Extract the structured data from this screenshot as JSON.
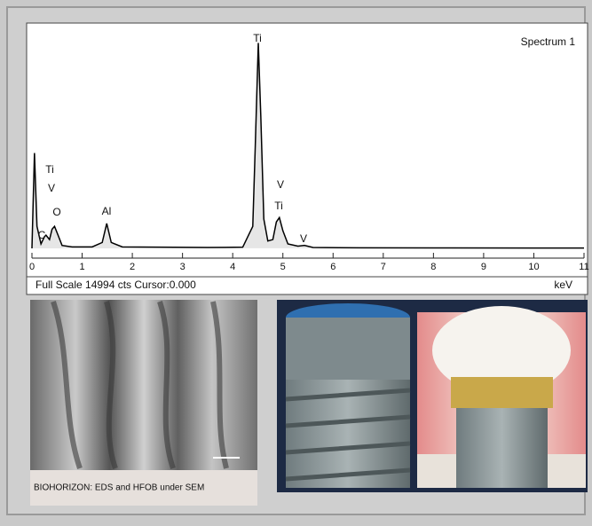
{
  "chart_data": {
    "type": "line",
    "series": [
      {
        "name": "Spectrum 1",
        "color": "#000000",
        "x": [
          0,
          0.05,
          0.1,
          0.18,
          0.25,
          0.28,
          0.35,
          0.4,
          0.45,
          0.52,
          0.6,
          0.8,
          1.2,
          1.4,
          1.49,
          1.58,
          1.8,
          2.5,
          3.5,
          4.2,
          4.4,
          4.45,
          4.51,
          4.56,
          4.62,
          4.7,
          4.8,
          4.87,
          4.93,
          5.0,
          5.1,
          5.3,
          5.43,
          5.6,
          6.5,
          8,
          10,
          11
        ],
        "values": [
          0,
          6500,
          1500,
          300,
          800,
          900,
          600,
          1300,
          1500,
          900,
          200,
          100,
          100,
          400,
          1700,
          400,
          100,
          80,
          60,
          80,
          1500,
          7000,
          14000,
          9000,
          2000,
          500,
          600,
          1800,
          2100,
          1200,
          300,
          150,
          200,
          60,
          40,
          30,
          20,
          20
        ]
      }
    ],
    "xlim": [
      0,
      11
    ],
    "xticks": [
      0,
      1,
      2,
      3,
      4,
      5,
      6,
      7,
      8,
      9,
      10,
      11
    ],
    "ylim": [
      0,
      14994
    ],
    "x_label": "keV",
    "footer": "Full Scale 14994 cts Cursor:0.000",
    "annotations": [
      "Ti",
      "V",
      "O",
      "C",
      "Al",
      "Ti",
      "V",
      "Ti",
      "V"
    ]
  },
  "caption": "BIOHORIZON: EDS and HFOB under SEM"
}
